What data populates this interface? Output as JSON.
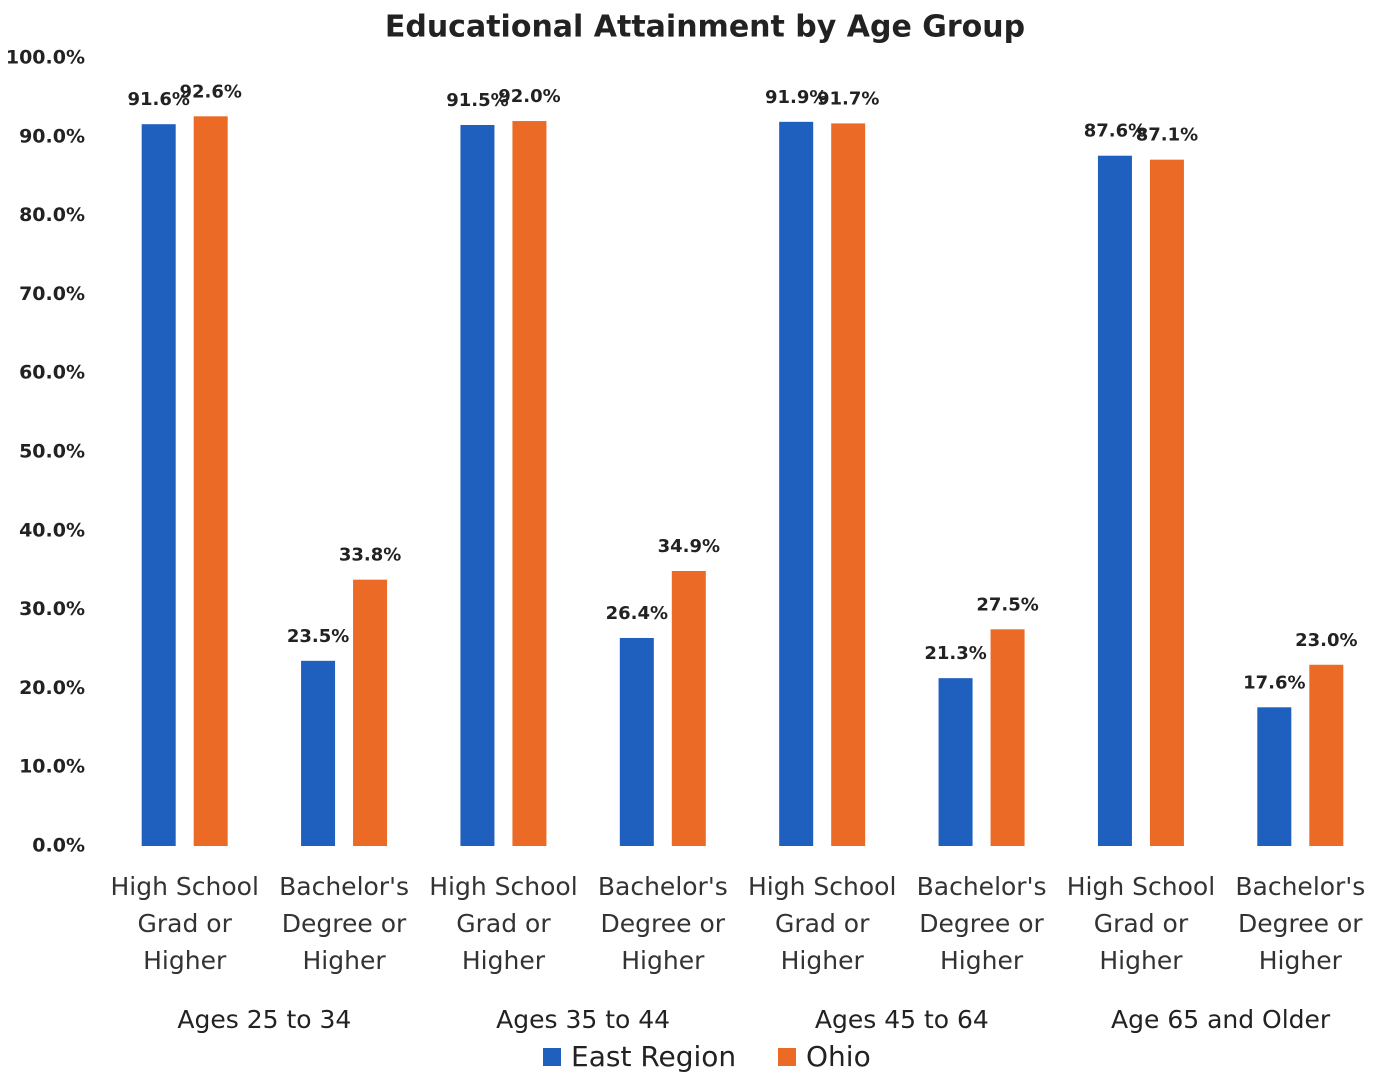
{
  "chart_data": {
    "type": "grouped_bar",
    "title": "Educational Attainment by Age Group",
    "categories": [
      "High School Grad or Higher",
      "Bachelor's Degree or Higher",
      "High School Grad or Higher",
      "Bachelor's Degree or Higher",
      "High School Grad or Higher",
      "Bachelor's Degree or Higher",
      "High School Grad or Higher",
      "Bachelor's Degree or Higher"
    ],
    "groups": [
      "Ages 25 to 34",
      "Ages 35 to 44",
      "Ages 45 to 64",
      "Age 65 and Older"
    ],
    "series": [
      {
        "name": "East Region",
        "color": "#1f5fbe",
        "values": [
          91.6,
          23.5,
          91.5,
          26.4,
          91.9,
          21.3,
          87.6,
          17.6
        ],
        "value_labels": [
          "91.6%",
          "23.5%",
          "91.5%",
          "26.4%",
          "91.9%",
          "21.3%",
          "87.6%",
          "17.6%"
        ]
      },
      {
        "name": "Ohio",
        "color": "#ea6a26",
        "values": [
          92.6,
          33.8,
          92.0,
          34.9,
          91.7,
          27.5,
          87.1,
          23.0
        ],
        "value_labels": [
          "92.6%",
          "33.8%",
          "92.0%",
          "34.9%",
          "91.7%",
          "27.5%",
          "87.1%",
          "23.0%"
        ]
      }
    ],
    "ylim": [
      0,
      100
    ],
    "yticks": [
      {
        "value": 0,
        "label": "0.0%"
      },
      {
        "value": 10,
        "label": "10.0%"
      },
      {
        "value": 20,
        "label": "20.0%"
      },
      {
        "value": 30,
        "label": "30.0%"
      },
      {
        "value": 40,
        "label": "40.0%"
      },
      {
        "value": 50,
        "label": "50.0%"
      },
      {
        "value": 60,
        "label": "60.0%"
      },
      {
        "value": 70,
        "label": "70.0%"
      },
      {
        "value": 80,
        "label": "80.0%"
      },
      {
        "value": 90,
        "label": "90.0%"
      },
      {
        "value": 100,
        "label": "100.0%"
      }
    ],
    "grid": false,
    "legend": "bottom"
  }
}
